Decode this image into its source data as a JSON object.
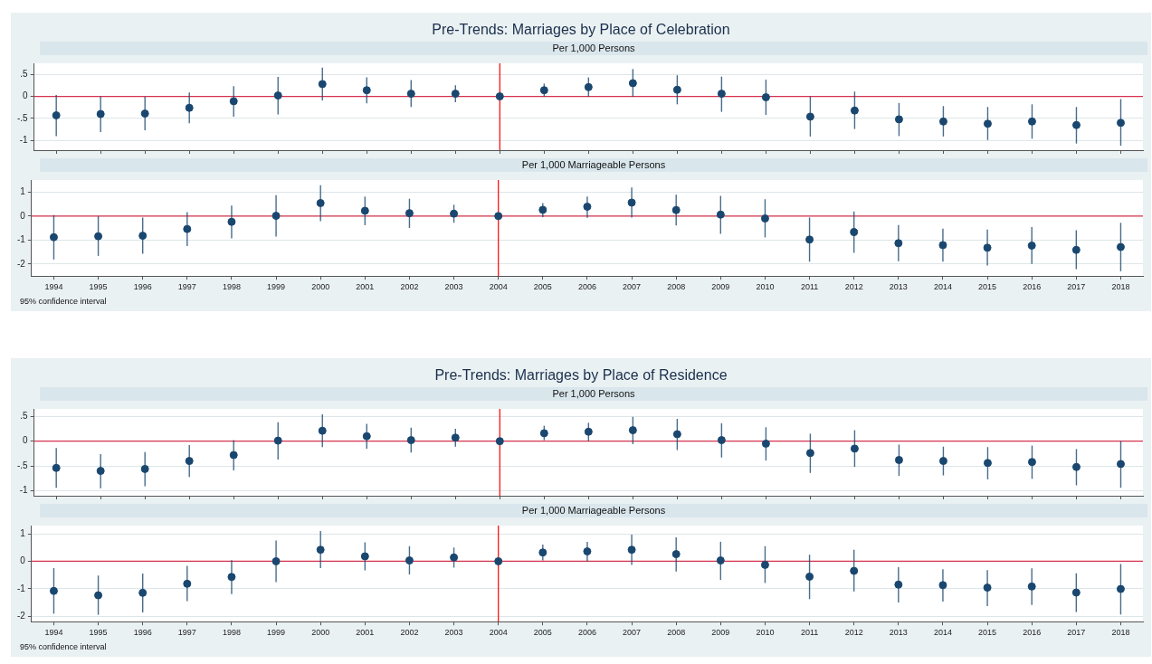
{
  "chart_data": [
    {
      "type": "scatter",
      "title": "Pre-Trends: Marriages by Place of Celebration",
      "subtitle": "Per 1,000 Persons",
      "categories": [
        "1994",
        "1995",
        "1996",
        "1997",
        "1998",
        "1999",
        "2000",
        "2001",
        "2002",
        "2003",
        "2004",
        "2005",
        "2006",
        "2007",
        "2008",
        "2009",
        "2010",
        "2011",
        "2012",
        "2013",
        "2014",
        "2015",
        "2016",
        "2017",
        "2018"
      ],
      "color": "#1a476f",
      "values": [
        -0.43,
        -0.4,
        -0.39,
        -0.26,
        -0.11,
        0.02,
        0.28,
        0.14,
        0.06,
        0.06,
        0,
        0.14,
        0.21,
        0.3,
        0.15,
        0.06,
        -0.02,
        -0.46,
        -0.32,
        -0.52,
        -0.57,
        -0.62,
        -0.57,
        -0.65,
        -0.6
      ],
      "errors": [
        [
          -0.9,
          0.03
        ],
        [
          -0.81,
          0
        ],
        [
          -0.77,
          -0.01
        ],
        [
          -0.61,
          0.09
        ],
        [
          -0.46,
          0.23
        ],
        [
          -0.41,
          0.44
        ],
        [
          -0.09,
          0.65
        ],
        [
          -0.16,
          0.43
        ],
        [
          -0.24,
          0.37
        ],
        [
          -0.13,
          0.25
        ],
        null,
        [
          -0.01,
          0.29
        ],
        [
          -0.01,
          0.43
        ],
        [
          -0.01,
          0.62
        ],
        [
          -0.18,
          0.48
        ],
        [
          -0.35,
          0.45
        ],
        [
          -0.42,
          0.38
        ],
        [
          -0.91,
          0
        ],
        [
          -0.74,
          0.11
        ],
        [
          -0.9,
          -0.15
        ],
        [
          -0.91,
          -0.22
        ],
        [
          -0.99,
          -0.24
        ],
        [
          -0.96,
          -0.18
        ],
        [
          -1.07,
          -0.24
        ],
        [
          -1.12,
          -0.06
        ]
      ],
      "ylim": [
        -1.22,
        0.75
      ],
      "yticks": [
        {
          "value": -1,
          "label": "-1"
        },
        {
          "value": -0.5,
          "label": "-.5"
        },
        0,
        {
          "value": 0.5,
          "label": ".5"
        }
      ],
      "ref_lines": [
        {
          "axis": "y",
          "value": 0,
          "color": "#d6334e"
        },
        {
          "axis": "x",
          "value": "2004",
          "color": "#ff0000"
        }
      ],
      "grid": "y",
      "legend": false,
      "marker": "circle",
      "tick_labels": "y"
    },
    {
      "type": "scatter",
      "subtitle": "Per 1,000 Marriageable Persons",
      "categories": [
        "1994",
        "1995",
        "1996",
        "1997",
        "1998",
        "1999",
        "2000",
        "2001",
        "2002",
        "2003",
        "2004",
        "2005",
        "2006",
        "2007",
        "2008",
        "2009",
        "2010",
        "2011",
        "2012",
        "2013",
        "2014",
        "2015",
        "2016",
        "2017",
        "2018"
      ],
      "color": "#1a476f",
      "values": [
        -0.88,
        -0.84,
        -0.82,
        -0.54,
        -0.24,
        0.01,
        0.54,
        0.22,
        0.12,
        0.1,
        0,
        0.26,
        0.39,
        0.56,
        0.25,
        0.06,
        -0.1,
        -0.98,
        -0.67,
        -1.13,
        -1.21,
        -1.32,
        -1.23,
        -1.41,
        -1.29
      ],
      "errors": [
        [
          -1.81,
          0.04
        ],
        [
          -1.66,
          -0.01
        ],
        [
          -1.57,
          -0.06
        ],
        [
          -1.25,
          0.16
        ],
        [
          -0.93,
          0.44
        ],
        [
          -0.85,
          0.87
        ],
        [
          -0.21,
          1.28
        ],
        [
          -0.38,
          0.81
        ],
        [
          -0.5,
          0.72
        ],
        [
          -0.28,
          0.47
        ],
        null,
        [
          -0.04,
          0.54
        ],
        [
          -0.07,
          0.81
        ],
        [
          -0.06,
          1.19
        ],
        [
          -0.39,
          0.89
        ],
        [
          -0.74,
          0.84
        ],
        [
          -0.89,
          0.7
        ],
        [
          -1.9,
          -0.06
        ],
        [
          -1.53,
          0.19
        ],
        [
          -1.88,
          -0.37
        ],
        [
          -1.9,
          -0.52
        ],
        [
          -2.06,
          -0.56
        ],
        [
          -1.99,
          -0.46
        ],
        [
          -2.21,
          -0.59
        ],
        [
          -2.3,
          -0.28
        ]
      ],
      "ylim": [
        -2.5,
        1.5
      ],
      "yticks": [
        -2,
        -1,
        0,
        1
      ],
      "ref_lines": [
        {
          "axis": "y",
          "value": 0,
          "color": "#d6334e"
        },
        {
          "axis": "x",
          "value": "2004",
          "color": "#ff0000"
        }
      ],
      "grid": "y",
      "legend": false,
      "marker": "circle",
      "annotations": [
        "95% confidence interval"
      ]
    },
    {
      "type": "scatter",
      "title": "Pre-Trends: Marriages by Place of Residence",
      "subtitle": "Per 1,000 Persons",
      "categories": [
        "1994",
        "1995",
        "1996",
        "1997",
        "1998",
        "1999",
        "2000",
        "2001",
        "2002",
        "2003",
        "2004",
        "2005",
        "2006",
        "2007",
        "2008",
        "2009",
        "2010",
        "2011",
        "2012",
        "2013",
        "2014",
        "2015",
        "2016",
        "2017",
        "2018"
      ],
      "color": "#1a476f",
      "values": [
        -0.54,
        -0.6,
        -0.56,
        -0.4,
        -0.28,
        0.01,
        0.21,
        0.1,
        0.02,
        0.07,
        0,
        0.16,
        0.19,
        0.22,
        0.14,
        0.02,
        -0.05,
        -0.24,
        -0.15,
        -0.38,
        -0.4,
        -0.44,
        -0.42,
        -0.52,
        -0.46
      ],
      "errors": [
        [
          -0.94,
          -0.14
        ],
        [
          -0.95,
          -0.26
        ],
        [
          -0.91,
          -0.22
        ],
        [
          -0.72,
          -0.08
        ],
        [
          -0.59,
          0.02
        ],
        [
          -0.37,
          0.38
        ],
        [
          -0.12,
          0.54
        ],
        [
          -0.15,
          0.35
        ],
        [
          -0.23,
          0.27
        ],
        [
          -0.11,
          0.25
        ],
        null,
        [
          0.02,
          0.31
        ],
        [
          0,
          0.37
        ],
        [
          -0.06,
          0.49
        ],
        [
          -0.18,
          0.45
        ],
        [
          -0.33,
          0.36
        ],
        [
          -0.39,
          0.28
        ],
        [
          -0.64,
          0.15
        ],
        [
          -0.52,
          0.22
        ],
        [
          -0.7,
          -0.07
        ],
        [
          -0.69,
          -0.11
        ],
        [
          -0.77,
          -0.12
        ],
        [
          -0.76,
          -0.09
        ],
        [
          -0.89,
          -0.16
        ],
        [
          -0.94,
          0
        ]
      ],
      "ylim": [
        -1.1,
        0.65
      ],
      "yticks": [
        {
          "value": -1,
          "label": "-1"
        },
        {
          "value": -0.5,
          "label": "-.5"
        },
        0,
        {
          "value": 0.5,
          "label": ".5"
        }
      ],
      "ref_lines": [
        {
          "axis": "y",
          "value": 0,
          "color": "#d6334e"
        },
        {
          "axis": "x",
          "value": "2004",
          "color": "#ff0000"
        }
      ],
      "grid": "y",
      "legend": false,
      "marker": "circle",
      "tick_labels": "y"
    },
    {
      "type": "scatter",
      "subtitle": "Per 1,000 Marriageable Persons",
      "categories": [
        "1994",
        "1995",
        "1996",
        "1997",
        "1998",
        "1999",
        "2000",
        "2001",
        "2002",
        "2003",
        "2004",
        "2005",
        "2006",
        "2007",
        "2008",
        "2009",
        "2010",
        "2011",
        "2012",
        "2013",
        "2014",
        "2015",
        "2016",
        "2017",
        "2018"
      ],
      "color": "#1a476f",
      "values": [
        -1.08,
        -1.24,
        -1.15,
        -0.82,
        -0.57,
        0,
        0.42,
        0.18,
        0.03,
        0.14,
        0,
        0.32,
        0.36,
        0.42,
        0.26,
        0.03,
        -0.13,
        -0.56,
        -0.35,
        -0.85,
        -0.87,
        -0.96,
        -0.92,
        -1.14,
        -1.01
      ],
      "errors": [
        [
          -1.91,
          -0.25
        ],
        [
          -1.95,
          -0.52
        ],
        [
          -1.86,
          -0.45
        ],
        [
          -1.45,
          -0.17
        ],
        [
          -1.2,
          0.04
        ],
        [
          -0.76,
          0.76
        ],
        [
          -0.25,
          1.1
        ],
        [
          -0.33,
          0.69
        ],
        [
          -0.48,
          0.55
        ],
        [
          -0.23,
          0.5
        ],
        null,
        [
          0.03,
          0.61
        ],
        [
          0,
          0.71
        ],
        [
          -0.13,
          0.97
        ],
        [
          -0.37,
          0.87
        ],
        [
          -0.68,
          0.71
        ],
        [
          -0.79,
          0.55
        ],
        [
          -1.38,
          0.24
        ],
        [
          -1.1,
          0.42
        ],
        [
          -1.5,
          -0.22
        ],
        [
          -1.47,
          -0.29
        ],
        [
          -1.63,
          -0.32
        ],
        [
          -1.59,
          -0.26
        ],
        [
          -1.85,
          -0.44
        ],
        [
          -1.94,
          -0.1
        ]
      ],
      "ylim": [
        -2.2,
        1.3
      ],
      "yticks": [
        -2,
        -1,
        0,
        1
      ],
      "ref_lines": [
        {
          "axis": "y",
          "value": 0,
          "color": "#d6334e"
        },
        {
          "axis": "x",
          "value": "2004",
          "color": "#ff0000"
        }
      ],
      "grid": "y",
      "legend": false,
      "marker": "circle",
      "annotations": [
        "95% confidence interval"
      ]
    }
  ]
}
